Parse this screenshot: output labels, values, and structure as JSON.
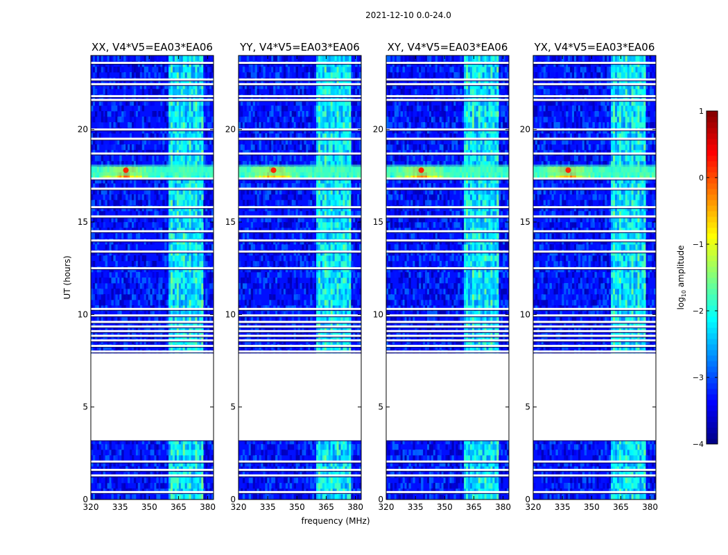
{
  "figure_title": "2021-12-10 0.0-24.0",
  "chart_data": {
    "type": "heatmap",
    "title": "2021-12-10 0.0-24.0",
    "xlabel": "frequency (MHz)",
    "ylabel": "UT (hours)",
    "xlim": [
      320,
      383
    ],
    "ylim": [
      0,
      24
    ],
    "x_ticks": [
      320,
      335,
      350,
      365,
      380
    ],
    "x_tick_labels": [
      "320",
      "335",
      "350",
      "365",
      "380"
    ],
    "y_ticks": [
      0,
      5,
      10,
      15,
      20
    ],
    "y_tick_labels": [
      "0",
      "5",
      "10",
      "15",
      "20"
    ],
    "panels": [
      {
        "title": "XX, V4*V5=EA03*EA06",
        "polarization": "XX"
      },
      {
        "title": "YY, V4*V5=EA03*EA06",
        "polarization": "YY"
      },
      {
        "title": "XY, V4*V5=EA03*EA06",
        "polarization": "XY"
      },
      {
        "title": "YX, V4*V5=EA03*EA06",
        "polarization": "YX"
      }
    ],
    "colorbar": {
      "label_main": "log",
      "label_sub": "10",
      "label_rest": " amplitude",
      "vmin": -4,
      "vmax": 1,
      "ticks": [
        1,
        0,
        -1,
        -2,
        -3,
        -4
      ],
      "tick_labels": [
        "1",
        "0",
        "−1",
        "−2",
        "−3",
        "−4"
      ],
      "colormap": "jet"
    },
    "background_level": -3.3,
    "rfi_band_mhz": [
      360,
      378
    ],
    "rfi_band_level": -2.3,
    "strong_rfi_ut": [
      17.5,
      18.1
    ],
    "strong_rfi_peak_mhz": 338,
    "data_gap_ut": [
      3.2,
      7.9
    ],
    "flagged_rows_ut": [
      0.4,
      1.3,
      1.6,
      2.05,
      3.25,
      8.0,
      8.3,
      8.6,
      8.85,
      9.1,
      9.35,
      9.6,
      9.95,
      10.3,
      12.5,
      13.4,
      14.0,
      14.5,
      15.3,
      15.8,
      16.8,
      17.35,
      18.7,
      19.5,
      20.0,
      21.6,
      21.8,
      22.45,
      22.7,
      23.6
    ]
  }
}
